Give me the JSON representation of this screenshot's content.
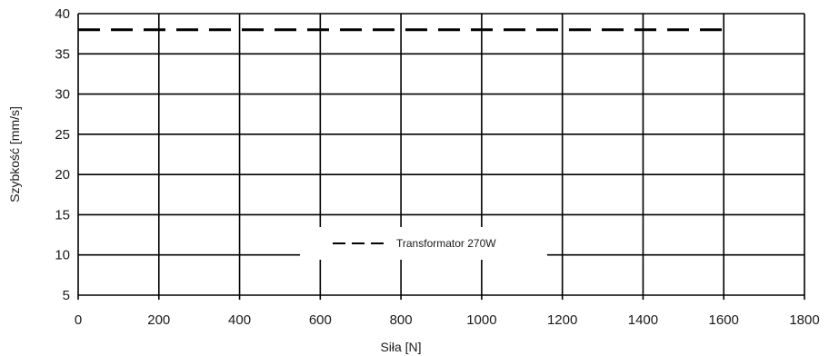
{
  "chart_data": {
    "type": "line",
    "xlabel": "Siła [N]",
    "ylabel": "Szybkość [mm/s]",
    "xlim": [
      0,
      1800
    ],
    "ylim": [
      5,
      40
    ],
    "xticks": [
      0,
      200,
      400,
      600,
      800,
      1000,
      1200,
      1400,
      1600,
      1800
    ],
    "yticks": [
      5,
      10,
      15,
      20,
      25,
      30,
      35,
      40
    ],
    "grid": true,
    "legend_position": "bottom-center",
    "series": [
      {
        "name": "Transformator 270W",
        "line_style": "dashed",
        "color": "#000000",
        "x": [
          0,
          1600
        ],
        "y": [
          38,
          38
        ]
      }
    ]
  }
}
